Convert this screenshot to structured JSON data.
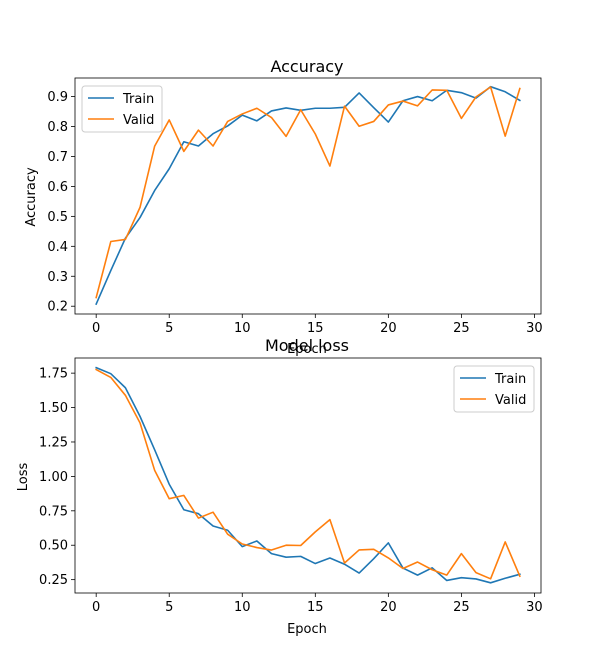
{
  "chart_data": [
    {
      "type": "line",
      "title": "Accuracy",
      "xlabel": "Epoch",
      "ylabel": "Accuracy",
      "xlim": [
        -1.45,
        30.45
      ],
      "ylim": [
        0.174,
        0.962
      ],
      "xticks": [
        0,
        5,
        10,
        15,
        20,
        25,
        30
      ],
      "yticks": [
        0.2,
        0.3,
        0.4,
        0.5,
        0.6,
        0.7,
        0.8,
        0.9
      ],
      "ytick_format": 1,
      "legend": "upper-left",
      "grid": false,
      "x": [
        0,
        1,
        2,
        3,
        4,
        5,
        6,
        7,
        8,
        9,
        10,
        11,
        12,
        13,
        14,
        15,
        16,
        17,
        18,
        19,
        20,
        21,
        22,
        23,
        24,
        25,
        26,
        27,
        28,
        29
      ],
      "series": [
        {
          "name": "Train",
          "color": "#1f77b4",
          "values": [
            0.207,
            0.319,
            0.427,
            0.496,
            0.586,
            0.659,
            0.749,
            0.735,
            0.776,
            0.802,
            0.838,
            0.819,
            0.852,
            0.862,
            0.854,
            0.861,
            0.861,
            0.864,
            0.912,
            0.863,
            0.815,
            0.886,
            0.9,
            0.886,
            0.921,
            0.913,
            0.895,
            0.933,
            0.916,
            0.887
          ]
        },
        {
          "name": "Valid",
          "color": "#ff7f0e",
          "values": [
            0.229,
            0.416,
            0.423,
            0.53,
            0.734,
            0.822,
            0.717,
            0.788,
            0.735,
            0.817,
            0.842,
            0.861,
            0.83,
            0.767,
            0.856,
            0.775,
            0.668,
            0.868,
            0.801,
            0.817,
            0.872,
            0.885,
            0.869,
            0.922,
            0.921,
            0.827,
            0.899,
            0.932,
            0.768,
            0.927
          ]
        }
      ]
    },
    {
      "type": "line",
      "title": "Model loss",
      "xlabel": "Epoch",
      "ylabel": "Loss",
      "xlim": [
        -1.45,
        30.45
      ],
      "ylim": [
        0.153,
        1.86
      ],
      "xticks": [
        0,
        5,
        10,
        15,
        20,
        25,
        30
      ],
      "yticks": [
        0.25,
        0.5,
        0.75,
        1.0,
        1.25,
        1.5,
        1.75
      ],
      "ytick_format": 2,
      "legend": "upper-right",
      "grid": false,
      "x": [
        0,
        1,
        2,
        3,
        4,
        5,
        6,
        7,
        8,
        9,
        10,
        11,
        12,
        13,
        14,
        15,
        16,
        17,
        18,
        19,
        20,
        21,
        22,
        23,
        24,
        25,
        26,
        27,
        28,
        29
      ],
      "series": [
        {
          "name": "Train",
          "color": "#1f77b4",
          "values": [
            1.79,
            1.746,
            1.644,
            1.436,
            1.194,
            0.943,
            0.758,
            0.729,
            0.64,
            0.609,
            0.49,
            0.531,
            0.439,
            0.413,
            0.419,
            0.367,
            0.407,
            0.362,
            0.298,
            0.402,
            0.517,
            0.334,
            0.283,
            0.336,
            0.244,
            0.264,
            0.255,
            0.227,
            0.26,
            0.289
          ]
        },
        {
          "name": "Valid",
          "color": "#ff7f0e",
          "values": [
            1.776,
            1.719,
            1.589,
            1.389,
            1.045,
            0.838,
            0.862,
            0.697,
            0.74,
            0.58,
            0.509,
            0.483,
            0.465,
            0.5,
            0.498,
            0.597,
            0.686,
            0.371,
            0.466,
            0.47,
            0.408,
            0.331,
            0.378,
            0.322,
            0.283,
            0.439,
            0.301,
            0.256,
            0.524,
            0.275
          ]
        }
      ]
    }
  ]
}
